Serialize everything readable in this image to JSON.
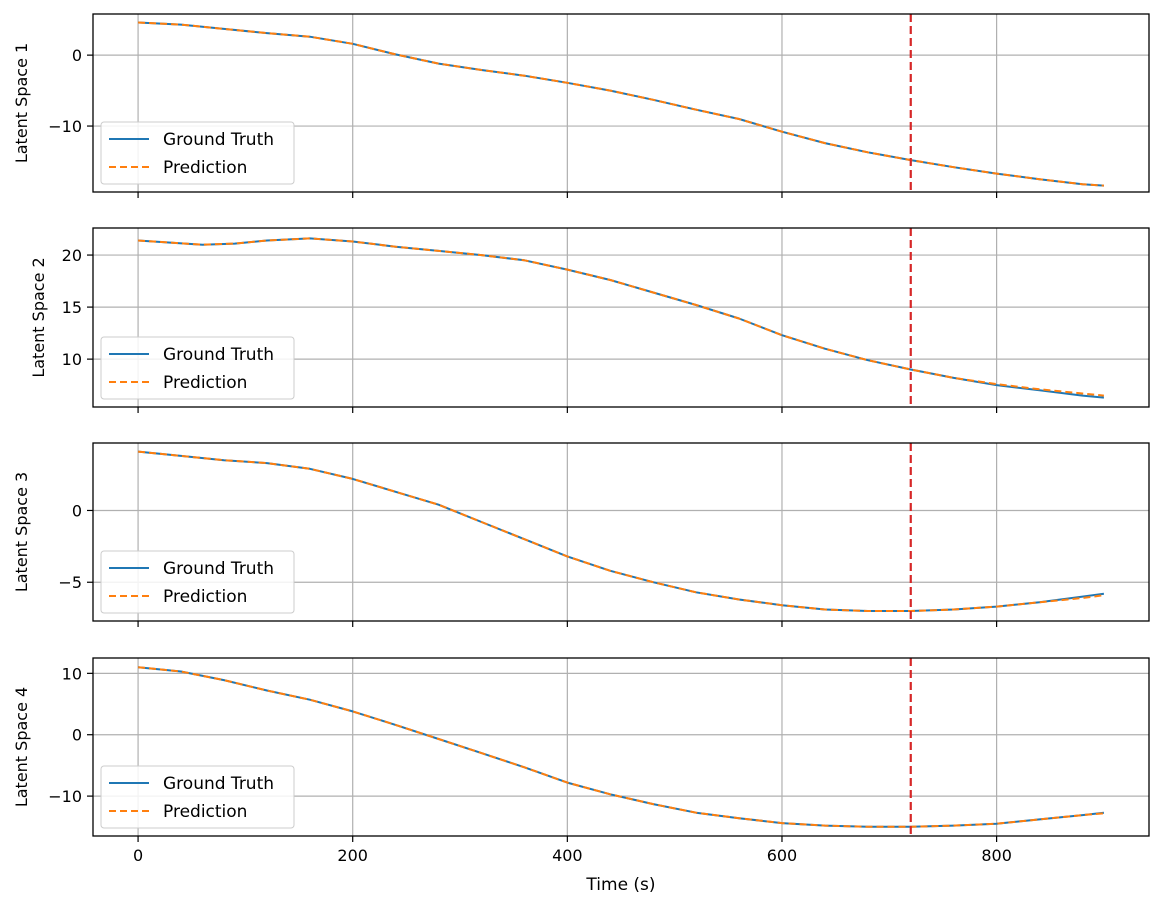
{
  "figure": {
    "xlabel": "Time (s)"
  },
  "chart_data": [
    {
      "type": "line",
      "ylabel": "Latent Space 1",
      "xlim": [
        -42,
        942
      ],
      "ylim": [
        -19.3,
        5.8
      ],
      "xticks": [
        0,
        200,
        400,
        600,
        800
      ],
      "yticks": [
        0,
        -10
      ],
      "ytick_labels": [
        "0",
        "−10"
      ],
      "grid": true,
      "legend_position": "lower left",
      "vline": {
        "x": 720,
        "color": "#d62728",
        "style": "dashed"
      },
      "x": [
        0,
        40,
        80,
        120,
        160,
        200,
        240,
        280,
        320,
        360,
        400,
        440,
        480,
        520,
        560,
        600,
        640,
        680,
        720,
        760,
        800,
        840,
        880,
        900
      ],
      "series": [
        {
          "name": "Ground Truth",
          "color": "#1f77b4",
          "style": "solid",
          "values": [
            4.6,
            4.3,
            3.7,
            3.1,
            2.6,
            1.6,
            0.1,
            -1.2,
            -2.1,
            -2.9,
            -3.9,
            -5.0,
            -6.3,
            -7.7,
            -9.0,
            -10.8,
            -12.4,
            -13.7,
            -14.8,
            -15.8,
            -16.7,
            -17.5,
            -18.2,
            -18.4
          ]
        },
        {
          "name": "Prediction",
          "color": "#ff7f0e",
          "style": "dashed",
          "values": [
            4.6,
            4.3,
            3.7,
            3.1,
            2.6,
            1.6,
            0.1,
            -1.2,
            -2.1,
            -2.9,
            -3.9,
            -5.0,
            -6.3,
            -7.7,
            -9.0,
            -10.8,
            -12.4,
            -13.7,
            -14.8,
            -15.8,
            -16.7,
            -17.5,
            -18.2,
            -18.4
          ]
        }
      ]
    },
    {
      "type": "line",
      "ylabel": "Latent Space 2",
      "xlim": [
        -42,
        942
      ],
      "ylim": [
        5.4,
        22.6
      ],
      "xticks": [
        0,
        200,
        400,
        600,
        800
      ],
      "yticks": [
        10,
        15,
        20
      ],
      "ytick_labels": [
        "10",
        "15",
        "20"
      ],
      "grid": true,
      "legend_position": "lower left",
      "vline": {
        "x": 720,
        "color": "#d62728",
        "style": "dashed"
      },
      "x": [
        0,
        30,
        60,
        90,
        120,
        160,
        200,
        240,
        280,
        320,
        360,
        400,
        440,
        480,
        520,
        560,
        600,
        640,
        680,
        720,
        760,
        800,
        840,
        880,
        900
      ],
      "series": [
        {
          "name": "Ground Truth",
          "color": "#1f77b4",
          "style": "solid",
          "values": [
            21.4,
            21.2,
            21.0,
            21.1,
            21.4,
            21.6,
            21.3,
            20.8,
            20.4,
            20.0,
            19.5,
            18.6,
            17.6,
            16.4,
            15.2,
            13.9,
            12.3,
            11.0,
            9.9,
            9.0,
            8.2,
            7.5,
            7.0,
            6.5,
            6.3
          ]
        },
        {
          "name": "Prediction",
          "color": "#ff7f0e",
          "style": "dashed",
          "values": [
            21.4,
            21.2,
            21.0,
            21.1,
            21.4,
            21.6,
            21.3,
            20.8,
            20.4,
            20.0,
            19.5,
            18.6,
            17.6,
            16.4,
            15.2,
            13.9,
            12.3,
            11.0,
            9.9,
            9.0,
            8.2,
            7.6,
            7.1,
            6.7,
            6.5
          ]
        }
      ]
    },
    {
      "type": "line",
      "ylabel": "Latent Space 3",
      "xlim": [
        -42,
        942
      ],
      "ylim": [
        -7.7,
        4.7
      ],
      "xticks": [
        0,
        200,
        400,
        600,
        800
      ],
      "yticks": [
        0,
        -5
      ],
      "ytick_labels": [
        "0",
        "−5"
      ],
      "grid": true,
      "legend_position": "lower left",
      "vline": {
        "x": 720,
        "color": "#d62728",
        "style": "dashed"
      },
      "x": [
        0,
        40,
        80,
        120,
        160,
        200,
        240,
        280,
        320,
        360,
        400,
        440,
        480,
        520,
        560,
        600,
        640,
        680,
        720,
        760,
        800,
        840,
        880,
        900
      ],
      "series": [
        {
          "name": "Ground Truth",
          "color": "#1f77b4",
          "style": "solid",
          "values": [
            4.1,
            3.8,
            3.5,
            3.3,
            2.9,
            2.2,
            1.3,
            0.4,
            -0.8,
            -2.0,
            -3.2,
            -4.2,
            -5.0,
            -5.7,
            -6.2,
            -6.6,
            -6.9,
            -7.0,
            -7.0,
            -6.9,
            -6.7,
            -6.4,
            -6.0,
            -5.8
          ]
        },
        {
          "name": "Prediction",
          "color": "#ff7f0e",
          "style": "dashed",
          "values": [
            4.1,
            3.8,
            3.5,
            3.3,
            2.9,
            2.2,
            1.3,
            0.4,
            -0.8,
            -2.0,
            -3.2,
            -4.2,
            -5.0,
            -5.7,
            -6.2,
            -6.6,
            -6.9,
            -7.0,
            -7.0,
            -6.9,
            -6.7,
            -6.4,
            -6.1,
            -5.9
          ]
        }
      ]
    },
    {
      "type": "line",
      "ylabel": "Latent Space 4",
      "xlim": [
        -42,
        942
      ],
      "ylim": [
        -16.5,
        12.5
      ],
      "xticks": [
        0,
        200,
        400,
        600,
        800
      ],
      "yticks": [
        10,
        0,
        -10
      ],
      "ytick_labels": [
        "10",
        "0",
        "−10"
      ],
      "grid": true,
      "legend_position": "lower left",
      "vline": {
        "x": 720,
        "color": "#d62728",
        "style": "dashed"
      },
      "x": [
        0,
        40,
        80,
        120,
        160,
        200,
        240,
        280,
        320,
        360,
        400,
        440,
        480,
        520,
        560,
        600,
        640,
        680,
        720,
        760,
        800,
        840,
        880,
        900
      ],
      "series": [
        {
          "name": "Ground Truth",
          "color": "#1f77b4",
          "style": "solid",
          "values": [
            11.0,
            10.3,
            8.9,
            7.2,
            5.7,
            3.8,
            1.6,
            -0.7,
            -3.0,
            -5.3,
            -7.8,
            -9.7,
            -11.3,
            -12.7,
            -13.6,
            -14.4,
            -14.8,
            -15.0,
            -15.0,
            -14.8,
            -14.5,
            -13.8,
            -13.1,
            -12.7
          ]
        },
        {
          "name": "Prediction",
          "color": "#ff7f0e",
          "style": "dashed",
          "values": [
            11.0,
            10.3,
            8.9,
            7.2,
            5.7,
            3.8,
            1.6,
            -0.7,
            -3.0,
            -5.3,
            -7.8,
            -9.7,
            -11.3,
            -12.7,
            -13.6,
            -14.4,
            -14.8,
            -15.0,
            -15.0,
            -14.8,
            -14.5,
            -13.8,
            -13.1,
            -12.8
          ]
        }
      ]
    }
  ]
}
